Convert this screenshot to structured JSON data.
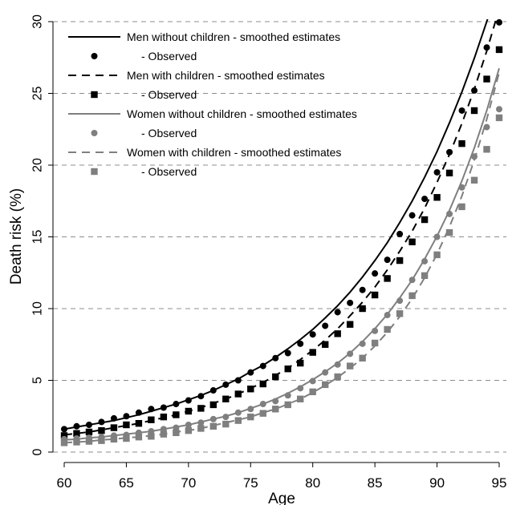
{
  "chart_data": {
    "type": "line",
    "title": "",
    "xlabel": "Age",
    "ylabel": "Death risk (%)",
    "xlim": [
      60,
      95
    ],
    "ylim": [
      0,
      30
    ],
    "xticks": [
      60,
      65,
      70,
      75,
      80,
      85,
      90,
      95
    ],
    "yticks": [
      0,
      5,
      10,
      15,
      20,
      25,
      30
    ],
    "grid": "horizontal dashed",
    "legend": "top-left",
    "x": [
      60,
      61,
      62,
      63,
      64,
      65,
      66,
      67,
      68,
      69,
      70,
      71,
      72,
      73,
      74,
      75,
      76,
      77,
      78,
      79,
      80,
      81,
      82,
      83,
      84,
      85,
      86,
      87,
      88,
      89,
      90,
      91,
      92,
      93,
      94,
      95
    ],
    "series": [
      {
        "name": "Men without children - smoothed estimates",
        "kind": "line",
        "style": "solid",
        "color": "#000000",
        "values": [
          1.6,
          1.75,
          1.9,
          2.05,
          2.2,
          2.4,
          2.6,
          2.85,
          3.1,
          3.35,
          3.65,
          3.95,
          4.3,
          4.7,
          5.1,
          5.6,
          6.05,
          6.6,
          7.2,
          7.85,
          8.55,
          9.35,
          10.2,
          11.15,
          12.2,
          13.35,
          14.6,
          16.0,
          17.5,
          19.15,
          20.95,
          22.95,
          25.1,
          27.45,
          30.0,
          32.8
        ]
      },
      {
        "name": "- Observed",
        "kind": "points",
        "marker": "circle",
        "color": "#000000",
        "values": [
          1.6,
          1.8,
          1.9,
          2.1,
          2.35,
          2.5,
          2.75,
          3.0,
          3.1,
          3.35,
          3.6,
          3.9,
          4.3,
          4.7,
          5.0,
          5.55,
          6.0,
          6.55,
          6.9,
          7.55,
          8.2,
          8.8,
          9.75,
          10.4,
          11.3,
          12.45,
          13.4,
          15.2,
          16.5,
          17.65,
          19.5,
          20.9,
          23.8,
          25.2,
          28.2,
          29.95
        ]
      },
      {
        "name": "Men with children - smoothed estimates",
        "kind": "line",
        "style": "dashed",
        "color": "#000000",
        "values": [
          1.2,
          1.3,
          1.4,
          1.55,
          1.7,
          1.85,
          2.0,
          2.2,
          2.4,
          2.6,
          2.85,
          3.1,
          3.4,
          3.7,
          4.05,
          4.45,
          4.85,
          5.35,
          5.85,
          6.45,
          7.1,
          7.8,
          8.6,
          9.5,
          10.45,
          11.5,
          12.7,
          14.0,
          15.4,
          17.0,
          18.8,
          20.75,
          22.9,
          25.3,
          27.95,
          30.9
        ]
      },
      {
        "name": "- Observed",
        "kind": "points",
        "marker": "square",
        "color": "#000000",
        "values": [
          1.15,
          1.3,
          1.4,
          1.5,
          1.7,
          1.9,
          2.0,
          2.25,
          2.45,
          2.6,
          2.85,
          3.05,
          3.3,
          3.7,
          4.05,
          4.4,
          4.75,
          5.25,
          5.8,
          6.2,
          6.95,
          7.5,
          8.25,
          8.9,
          10.0,
          10.95,
          12.1,
          13.35,
          14.65,
          16.2,
          17.75,
          19.45,
          21.5,
          23.8,
          26.0,
          28.05
        ]
      },
      {
        "name": "Women without children - smoothed estimates",
        "kind": "line",
        "style": "solid",
        "color": "#7f7f7f",
        "values": [
          0.85,
          0.9,
          1.0,
          1.05,
          1.15,
          1.25,
          1.35,
          1.45,
          1.6,
          1.75,
          1.9,
          2.1,
          2.3,
          2.5,
          2.75,
          3.05,
          3.35,
          3.7,
          4.1,
          4.55,
          5.05,
          5.6,
          6.2,
          6.9,
          7.7,
          8.6,
          9.6,
          10.75,
          12.0,
          13.45,
          15.05,
          16.85,
          18.9,
          21.2,
          23.8,
          26.75
        ]
      },
      {
        "name": "- Observed",
        "kind": "points",
        "marker": "circle",
        "color": "#7f7f7f",
        "values": [
          0.9,
          0.95,
          1.0,
          1.05,
          1.15,
          1.2,
          1.35,
          1.45,
          1.6,
          1.7,
          1.9,
          2.05,
          2.3,
          2.45,
          2.75,
          3.0,
          3.35,
          3.55,
          3.95,
          4.45,
          4.95,
          5.55,
          6.1,
          6.85,
          7.55,
          8.45,
          9.55,
          10.55,
          12.0,
          13.3,
          15.0,
          16.6,
          18.45,
          20.6,
          22.65,
          23.9
        ]
      },
      {
        "name": "Women with children - smoothed estimates",
        "kind": "line",
        "style": "dashed",
        "color": "#7f7f7f",
        "values": [
          0.65,
          0.7,
          0.75,
          0.85,
          0.9,
          1.0,
          1.05,
          1.15,
          1.25,
          1.4,
          1.5,
          1.65,
          1.85,
          2.05,
          2.25,
          2.45,
          2.75,
          3.0,
          3.35,
          3.7,
          4.15,
          4.65,
          5.2,
          5.85,
          6.55,
          7.4,
          8.35,
          9.45,
          10.7,
          12.15,
          13.8,
          15.7,
          17.85,
          20.35,
          23.2,
          26.45
        ]
      },
      {
        "name": "- Observed",
        "kind": "points",
        "marker": "square",
        "color": "#7f7f7f",
        "values": [
          0.65,
          0.7,
          0.75,
          0.8,
          0.9,
          0.95,
          1.05,
          1.1,
          1.25,
          1.35,
          1.5,
          1.65,
          1.8,
          1.95,
          2.2,
          2.45,
          2.7,
          3.0,
          3.3,
          3.7,
          4.2,
          4.7,
          5.25,
          6.0,
          6.55,
          7.6,
          8.55,
          9.65,
          10.9,
          12.3,
          13.75,
          15.3,
          17.1,
          18.95,
          21.1,
          23.3
        ]
      }
    ]
  }
}
